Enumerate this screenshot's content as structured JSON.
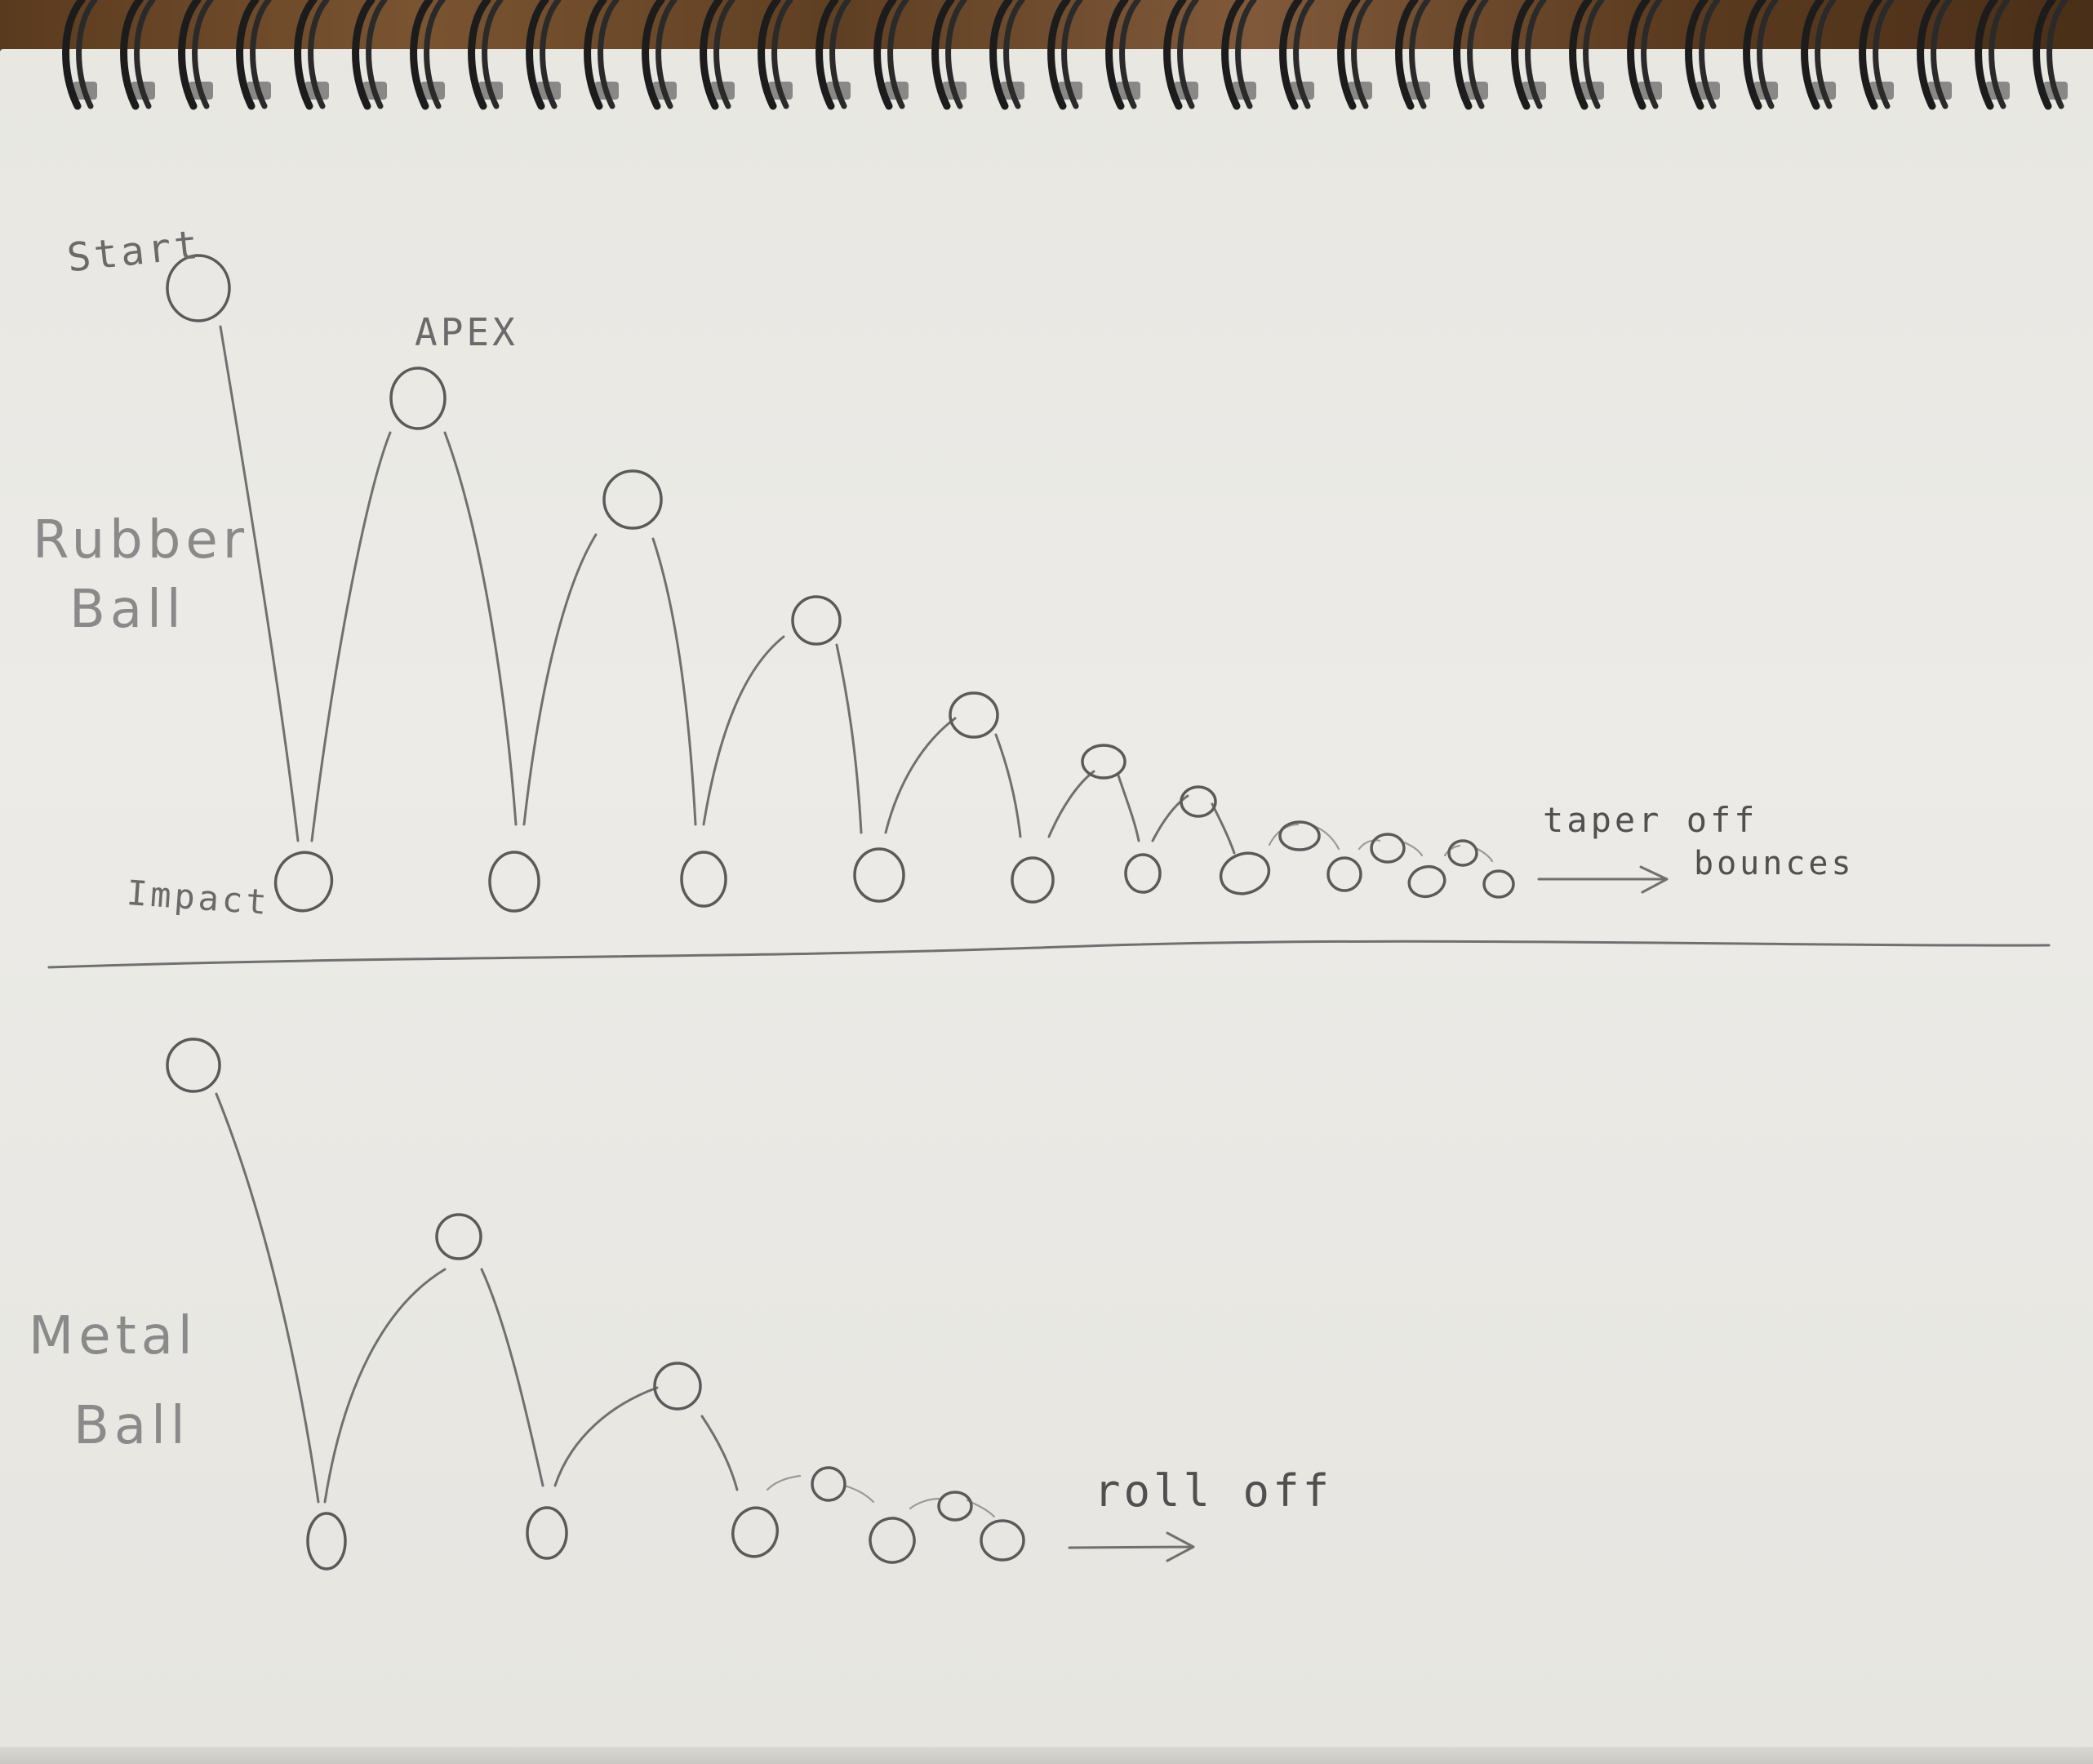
{
  "rubber_section": {
    "label_line1": "Rubber",
    "label_line2": "Ball",
    "start_label": "Start",
    "apex_label": "APEX",
    "impact_label": "Impact",
    "taper_label_line1": "taper off",
    "taper_label_line2": "bounces"
  },
  "metal_section": {
    "label_line1": "Metal",
    "label_line2": "Ball",
    "roll_label": "roll off"
  },
  "colors": {
    "pencil": "#707070",
    "paper": "#ebeae6",
    "desk": "#6b4a2a"
  }
}
